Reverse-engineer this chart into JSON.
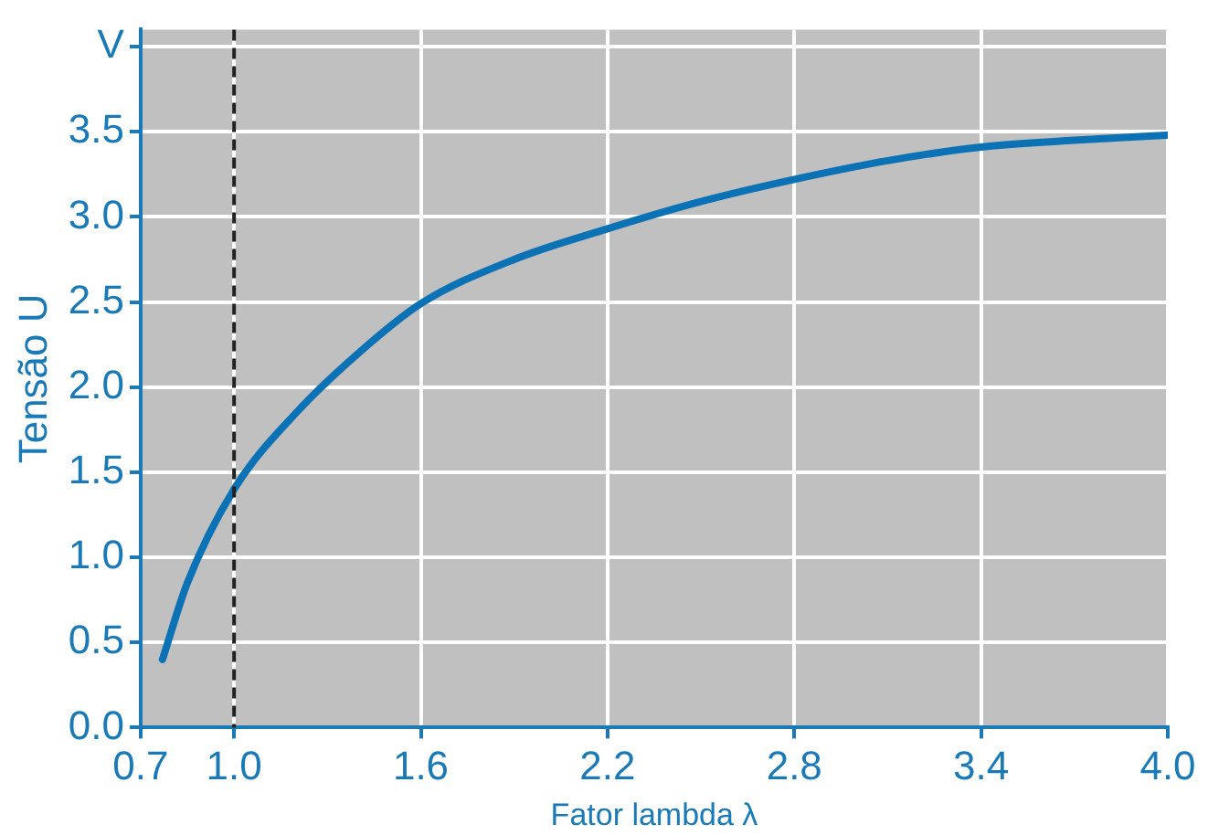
{
  "chart_data": {
    "type": "line",
    "xlabel": "Fator lambda λ",
    "ylabel": "Tensão U",
    "series": [
      {
        "color": "#0b72b5",
        "x": [
          0.77,
          0.85,
          1.0,
          1.2,
          1.4,
          1.6,
          1.9,
          2.2,
          2.5,
          2.8,
          3.1,
          3.4,
          3.7,
          4.0
        ],
        "values": [
          0.4,
          0.85,
          1.4,
          1.85,
          2.2,
          2.49,
          2.75,
          2.93,
          3.09,
          3.22,
          3.33,
          3.41,
          3.45,
          3.48
        ]
      }
    ],
    "xlim": [
      0.7,
      4.0
    ],
    "xticks": [
      {
        "value": 0.7,
        "label": "0.7"
      },
      {
        "value": 1.0,
        "label": "1.0"
      },
      {
        "value": 1.6,
        "label": "1.6"
      },
      {
        "value": 2.2,
        "label": "2.2"
      },
      {
        "value": 2.8,
        "label": "2.8"
      },
      {
        "value": 3.4,
        "label": "3.4"
      },
      {
        "value": 4.0,
        "label": "4.0"
      }
    ],
    "ylim": [
      0,
      4.1
    ],
    "yticks": [
      {
        "value": 0,
        "label": "0.0"
      },
      {
        "value": 0.5,
        "label": "0.5"
      },
      {
        "value": 1.0,
        "label": "1.0"
      },
      {
        "value": 1.5,
        "label": "1.5"
      },
      {
        "value": 2.0,
        "label": "2.0"
      },
      {
        "value": 2.5,
        "label": "2.5"
      },
      {
        "value": 3.0,
        "label": "3.0"
      },
      {
        "value": 3.5,
        "label": "3.5"
      },
      {
        "value": 4.0,
        "label": "V"
      }
    ],
    "ref_lines": [
      {
        "axis": "x",
        "value": 1.0,
        "color": "#222222",
        "line_style": "dashed"
      }
    ],
    "grid": true,
    "legend": false,
    "marker": "none",
    "line_style": "solid"
  }
}
